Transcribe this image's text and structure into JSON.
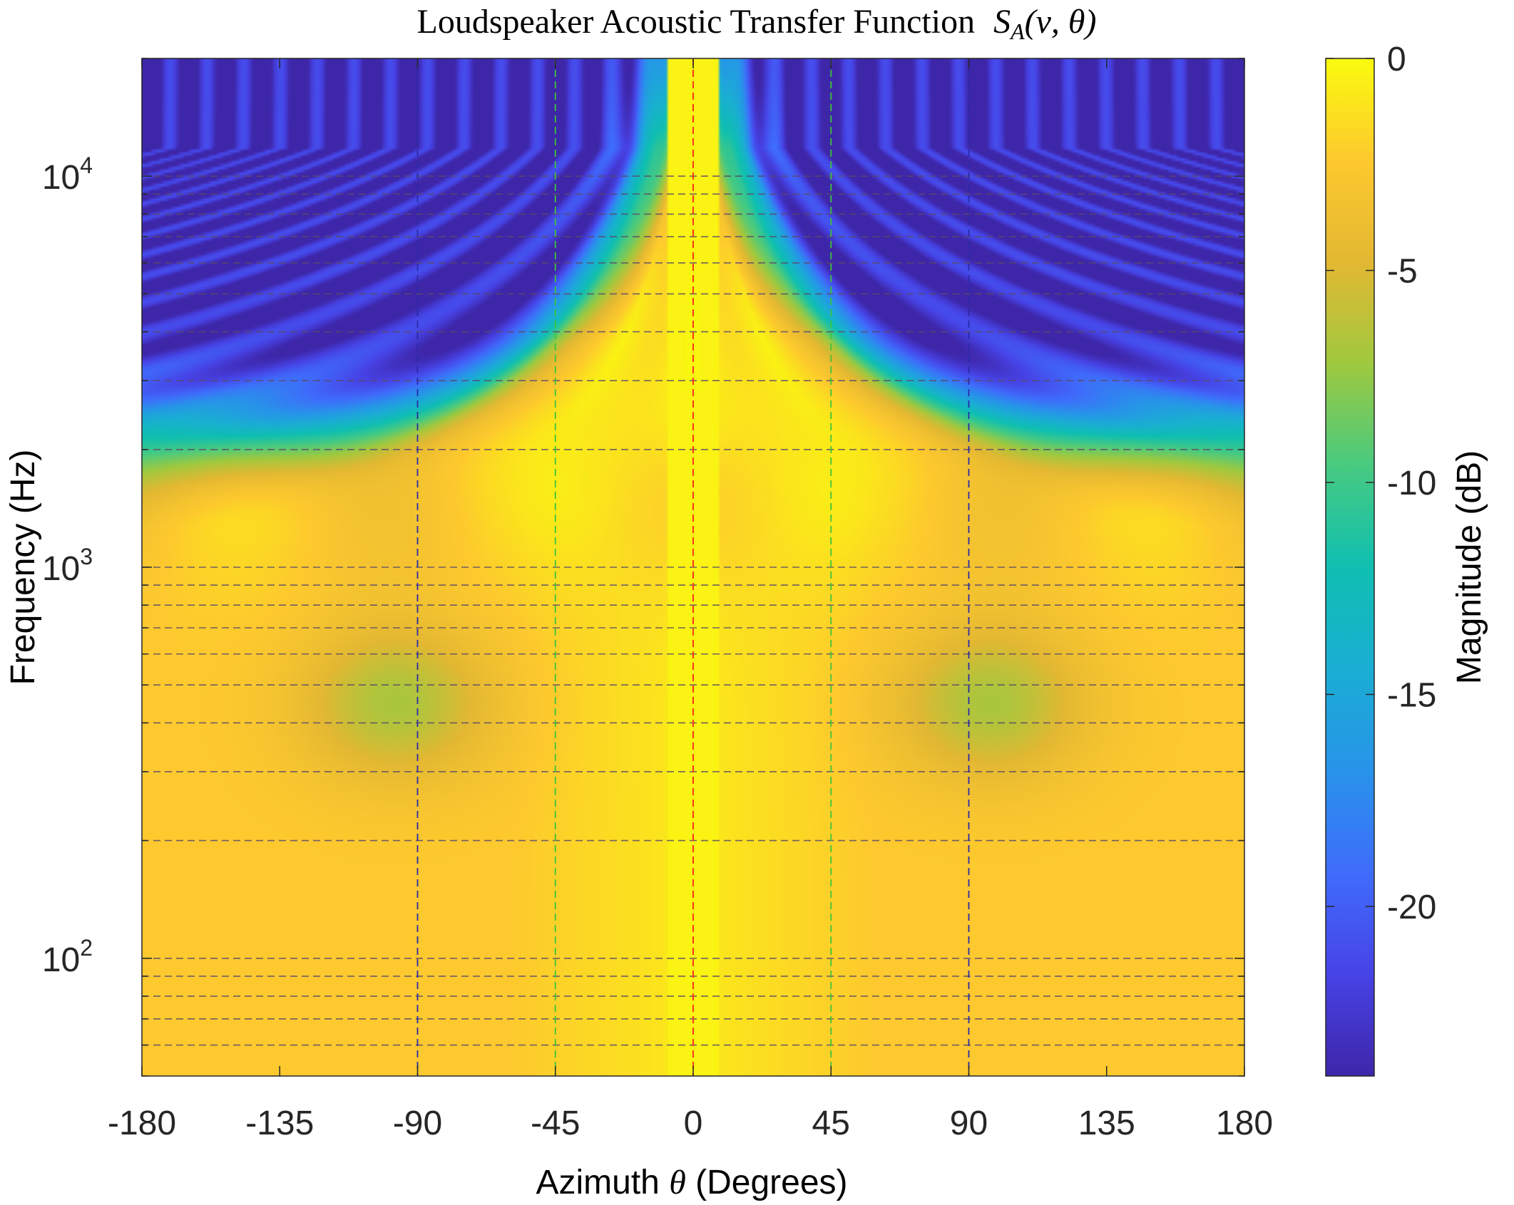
{
  "chart_data": {
    "type": "heatmap",
    "title": "Loudspeaker Acoustic Transfer Function",
    "title_math": {
      "symbol": "S",
      "subscript": "A",
      "args": "(ν, θ)"
    },
    "xlabel": {
      "prefix": "Azimuth",
      "symbol": "θ",
      "suffix": "(Degrees)"
    },
    "ylabel": "Frequency (Hz)",
    "colorbar_label": "Magnitude (dB)",
    "x_ticks": [
      "-180",
      "-135",
      "-90",
      "-45",
      "0",
      "45",
      "90",
      "135",
      "180"
    ],
    "x_tick_values": [
      -180,
      -135,
      -90,
      -45,
      0,
      45,
      90,
      135,
      180
    ],
    "xlim": [
      -180,
      180
    ],
    "y_scale": "log",
    "ylim": [
      50,
      20000
    ],
    "y_ticks": [
      {
        "base": "10",
        "exp": "2",
        "value": 100
      },
      {
        "base": "10",
        "exp": "3",
        "value": 1000
      },
      {
        "base": "10",
        "exp": "4",
        "value": 10000
      }
    ],
    "colorbar_ticks": [
      "0",
      "-5",
      "-10",
      "-15",
      "-20"
    ],
    "colorbar_tick_values": [
      0,
      -5,
      -10,
      -15,
      -20
    ],
    "clim": [
      -24,
      0
    ],
    "colormap": "parula",
    "colormap_stops": [
      {
        "v": 0.0,
        "c": "#3e26a8"
      },
      {
        "v": 0.1,
        "c": "#4743e6"
      },
      {
        "v": 0.2,
        "c": "#3f6cfb"
      },
      {
        "v": 0.3,
        "c": "#2893ea"
      },
      {
        "v": 0.4,
        "c": "#1aaed3"
      },
      {
        "v": 0.5,
        "c": "#0fbfb1"
      },
      {
        "v": 0.6,
        "c": "#48ca80"
      },
      {
        "v": 0.7,
        "c": "#9fc93f"
      },
      {
        "v": 0.8,
        "c": "#e3b832"
      },
      {
        "v": 0.9,
        "c": "#fdc92e"
      },
      {
        "v": 1.0,
        "c": "#f9fb0e"
      }
    ],
    "reference_lines": {
      "vertical": [
        {
          "x": -90,
          "color": "#2a2aa8"
        },
        {
          "x": -45,
          "color": "#3cc43c"
        },
        {
          "x": 0,
          "color": "#ff2020"
        },
        {
          "x": 45,
          "color": "#3cc43c"
        },
        {
          "x": 90,
          "color": "#2a2aa8"
        }
      ],
      "horizontal_hz": [
        60,
        70,
        80,
        90,
        100,
        200,
        300,
        400,
        500,
        600,
        700,
        800,
        900,
        1000,
        2000,
        3000,
        4000,
        5000,
        6000,
        7000,
        8000,
        9000,
        10000
      ],
      "horizontal_color": "#5a4a6a",
      "style": "dashed"
    },
    "features": {
      "surface_db": "magnitude field, 0 dB near on-axis (0°), down to about -24 dB at rear high frequencies",
      "low_freq_dips": [
        {
          "theta": -93,
          "freq": 450,
          "db": -5.5
        },
        {
          "theta": 97,
          "freq": 450,
          "db": -5.5
        }
      ]
    }
  }
}
